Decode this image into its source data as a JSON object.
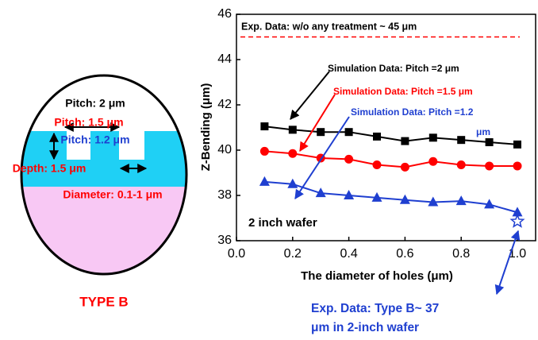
{
  "diagram": {
    "labels": [
      {
        "text": "Pitch: 2 μm",
        "color": "#000000"
      },
      {
        "text": "Pitch: 1.5 μm",
        "color": "#ff0000"
      },
      {
        "text": "Pitch: 1.2 μm",
        "color": "#1f3fd0"
      },
      {
        "text": "Depth: 1.5 μm",
        "color": "#ff0000"
      },
      {
        "text": "Diameter: 0.1-1 μm",
        "color": "#ff0000"
      }
    ],
    "caption": "TYPE B"
  },
  "chart_data": {
    "type": "line",
    "x_label": "The diameter of holes (μm)",
    "y_label": "Z-Bending (μm)",
    "x": [
      0.1,
      0.2,
      0.3,
      0.4,
      0.5,
      0.6,
      0.7,
      0.8,
      0.9,
      1.0
    ],
    "series": [
      {
        "color": "#000000",
        "marker": "square",
        "values": [
          41.05,
          40.9,
          40.8,
          40.8,
          40.6,
          40.4,
          40.55,
          40.45,
          40.35,
          40.25
        ]
      },
      {
        "color": "#ff0000",
        "marker": "circle",
        "values": [
          39.95,
          39.85,
          39.65,
          39.6,
          39.35,
          39.25,
          39.5,
          39.35,
          39.3,
          39.3
        ]
      },
      {
        "color": "#1f3fd0",
        "marker": "triangle",
        "values": [
          38.6,
          38.5,
          38.1,
          38.0,
          37.9,
          37.8,
          37.7,
          37.75,
          37.6,
          37.25
        ]
      }
    ],
    "reference_line": {
      "y": 45,
      "color": "#ff0000",
      "text": "Exp. Data: w/o any treatment ~ 45 μm"
    },
    "reference_point": {
      "x": 1.0,
      "y": 36.85,
      "color": "#1f3fd0",
      "text": [
        "Exp. Data: Type B~ 37",
        "μm in 2-inch wafer"
      ]
    },
    "annotations": [
      {
        "text": [
          "Simulation Data: Pitch =2 μm"
        ],
        "color": "#000000"
      },
      {
        "text": [
          "Simulation Data: Pitch =1.5 μm"
        ],
        "color": "#ff0000"
      },
      {
        "text": [
          "Simulation Data: Pitch =1.2",
          "μm"
        ],
        "color": "#1f3fd0"
      },
      {
        "text": [
          "2 inch wafer"
        ],
        "color": "#000000"
      }
    ],
    "xlim": [
      0,
      1.07
    ],
    "ylim": [
      36,
      46
    ],
    "xticks": [
      {
        "value": 0,
        "label": "0.0"
      },
      0.2,
      0.4,
      0.6,
      0.8,
      {
        "value": 1,
        "label": "1.0"
      }
    ],
    "yticks": [
      36,
      38,
      40,
      42,
      44,
      46
    ]
  }
}
